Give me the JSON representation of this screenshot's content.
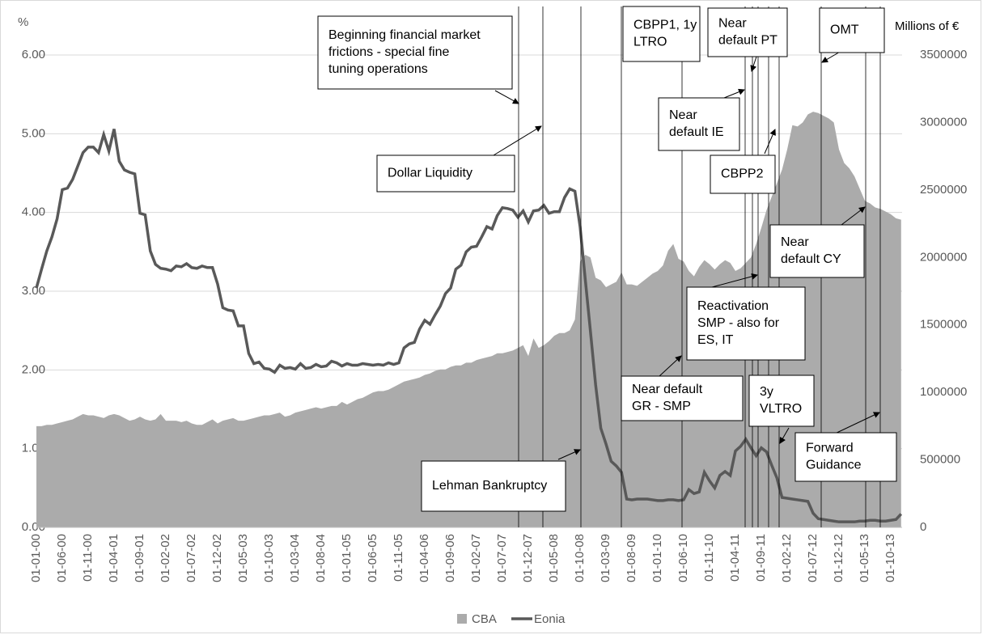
{
  "chart_data": {
    "type": "area-line",
    "y_label": "%",
    "y2_label": "Millions of €",
    "categories": [
      "01-01-00",
      null,
      null,
      null,
      null,
      "01-06-00",
      null,
      null,
      null,
      null,
      "01-11-00",
      null,
      null,
      null,
      null,
      "01-04-01",
      null,
      null,
      null,
      null,
      "01-09-01",
      null,
      null,
      null,
      null,
      "01-02-02",
      null,
      null,
      null,
      null,
      "01-07-02",
      null,
      null,
      null,
      null,
      "01-12-02",
      null,
      null,
      null,
      null,
      "01-05-03",
      null,
      null,
      null,
      null,
      "01-10-03",
      null,
      null,
      null,
      null,
      "01-03-04",
      null,
      null,
      null,
      null,
      "01-08-04",
      null,
      null,
      null,
      null,
      "01-01-05",
      null,
      null,
      null,
      null,
      "01-06-05",
      null,
      null,
      null,
      null,
      "01-11-05",
      null,
      null,
      null,
      null,
      "01-04-06",
      null,
      null,
      null,
      null,
      "01-09-06",
      null,
      null,
      null,
      null,
      "01-02-07",
      null,
      null,
      null,
      null,
      "01-07-07",
      null,
      null,
      null,
      null,
      "01-12-07",
      null,
      null,
      null,
      null,
      "01-05-08",
      null,
      null,
      null,
      null,
      "01-10-08",
      null,
      null,
      null,
      null,
      "01-03-09",
      null,
      null,
      null,
      null,
      "01-08-09",
      null,
      null,
      null,
      null,
      "01-01-10",
      null,
      null,
      null,
      null,
      "01-06-10",
      null,
      null,
      null,
      null,
      "01-11-10",
      null,
      null,
      null,
      null,
      "01-04-11",
      null,
      null,
      null,
      null,
      "01-09-11",
      null,
      null,
      null,
      null,
      "01-02-12",
      null,
      null,
      null,
      null,
      "01-07-12",
      null,
      null,
      null,
      null,
      "01-12-12",
      null,
      null,
      null,
      null,
      "01-05-13",
      null,
      null,
      null,
      null,
      "01-10-13",
      null,
      null
    ],
    "series": [
      {
        "name": "CBA",
        "color": "#ababab",
        "axis": "y2",
        "kind": "area",
        "values": [
          750000,
          750000,
          760000,
          760000,
          770000,
          780000,
          790000,
          800000,
          820000,
          840000,
          830000,
          830000,
          820000,
          810000,
          830000,
          840000,
          830000,
          810000,
          790000,
          800000,
          820000,
          800000,
          790000,
          800000,
          840000,
          790000,
          790000,
          790000,
          780000,
          790000,
          770000,
          760000,
          760000,
          780000,
          800000,
          770000,
          790000,
          800000,
          810000,
          790000,
          790000,
          800000,
          810000,
          820000,
          830000,
          830000,
          840000,
          850000,
          820000,
          830000,
          850000,
          860000,
          870000,
          880000,
          890000,
          880000,
          890000,
          900000,
          900000,
          930000,
          910000,
          930000,
          950000,
          960000,
          980000,
          1000000,
          1010000,
          1010000,
          1020000,
          1040000,
          1060000,
          1080000,
          1090000,
          1100000,
          1110000,
          1130000,
          1140000,
          1160000,
          1170000,
          1170000,
          1190000,
          1200000,
          1200000,
          1220000,
          1220000,
          1240000,
          1250000,
          1260000,
          1270000,
          1290000,
          1290000,
          1300000,
          1310000,
          1330000,
          1350000,
          1270000,
          1400000,
          1330000,
          1350000,
          1380000,
          1420000,
          1440000,
          1440000,
          1460000,
          1540000,
          1970000,
          2020000,
          2000000,
          1850000,
          1830000,
          1780000,
          1800000,
          1820000,
          1890000,
          1800000,
          1800000,
          1790000,
          1820000,
          1850000,
          1880000,
          1900000,
          1940000,
          2050000,
          2100000,
          1990000,
          1970000,
          1900000,
          1860000,
          1930000,
          1980000,
          1950000,
          1910000,
          1950000,
          1980000,
          1960000,
          1900000,
          1920000,
          1960000,
          2000000,
          2100000,
          2220000,
          2350000,
          2450000,
          2550000,
          2650000,
          2800000,
          2980000,
          2970000,
          3000000,
          3060000,
          3080000,
          3070000,
          3050000,
          3030000,
          3000000,
          2800000,
          2700000,
          2660000,
          2600000,
          2510000,
          2420000,
          2400000,
          2370000,
          2360000,
          2340000,
          2320000,
          2290000,
          2280000
        ]
      },
      {
        "name": "Eonia",
        "color": "#595959",
        "axis": "y",
        "kind": "line",
        "values": [
          3.04,
          3.28,
          3.51,
          3.69,
          3.92,
          4.29,
          4.31,
          4.42,
          4.59,
          4.76,
          4.83,
          4.83,
          4.76,
          4.99,
          4.78,
          5.06,
          4.65,
          4.54,
          4.51,
          4.49,
          3.99,
          3.97,
          3.51,
          3.34,
          3.29,
          3.28,
          3.26,
          3.32,
          3.31,
          3.35,
          3.3,
          3.29,
          3.32,
          3.3,
          3.3,
          3.09,
          2.79,
          2.76,
          2.75,
          2.56,
          2.56,
          2.21,
          2.08,
          2.1,
          2.02,
          2.01,
          1.97,
          2.06,
          2.02,
          2.03,
          2.01,
          2.08,
          2.02,
          2.03,
          2.07,
          2.04,
          2.05,
          2.11,
          2.09,
          2.05,
          2.08,
          2.06,
          2.06,
          2.08,
          2.07,
          2.06,
          2.07,
          2.06,
          2.09,
          2.07,
          2.09,
          2.28,
          2.33,
          2.35,
          2.52,
          2.63,
          2.58,
          2.7,
          2.81,
          2.97,
          3.04,
          3.28,
          3.33,
          3.5,
          3.56,
          3.57,
          3.69,
          3.82,
          3.79,
          3.96,
          4.06,
          4.05,
          4.03,
          3.94,
          4.02,
          3.88,
          4.02,
          4.03,
          4.09,
          3.99,
          4.01,
          4.01,
          4.19,
          4.3,
          4.27,
          3.82,
          3.15,
          2.49,
          1.81,
          1.26,
          1.06,
          0.84,
          0.78,
          0.7,
          0.36,
          0.35,
          0.36,
          0.36,
          0.36,
          0.35,
          0.34,
          0.34,
          0.35,
          0.35,
          0.34,
          0.35,
          0.48,
          0.43,
          0.45,
          0.7,
          0.59,
          0.5,
          0.66,
          0.71,
          0.66,
          0.97,
          1.03,
          1.12,
          1.01,
          0.91,
          1.01,
          0.96,
          0.79,
          0.63,
          0.38,
          0.37,
          0.36,
          0.35,
          0.34,
          0.33,
          0.18,
          0.11,
          0.1,
          0.09,
          0.08,
          0.07,
          0.07,
          0.07,
          0.07,
          0.08,
          0.08,
          0.09,
          0.09,
          0.08,
          0.08,
          0.09,
          0.1,
          0.17
        ]
      }
    ],
    "ylim": [
      0,
      6
    ],
    "yticks": [
      {
        "value": 0,
        "label": "0.00"
      },
      {
        "value": 1,
        "label": "1.00"
      },
      {
        "value": 2,
        "label": "2.00"
      },
      {
        "value": 3,
        "label": "3.00"
      },
      {
        "value": 4,
        "label": "4.00"
      },
      {
        "value": 5,
        "label": "5.00"
      },
      {
        "value": 6,
        "label": "6.00"
      }
    ],
    "y2lim": [
      0,
      3500000
    ],
    "y2ticks": [
      0,
      500000,
      1000000,
      1500000,
      2000000,
      2500000,
      3000000,
      3500000
    ],
    "grid": true,
    "legend": "bottom",
    "annotations": [
      {
        "text": [
          "Beginning financial market",
          "frictions - special fine",
          "tuning operations"
        ]
      },
      {
        "text": [
          "Dollar Liquidity"
        ]
      },
      {
        "text": [
          "Lehman Bankruptcy"
        ]
      },
      {
        "text": [
          "CBPP1, 1y",
          "LTRO"
        ]
      },
      {
        "text": [
          "Near",
          "default PT"
        ]
      },
      {
        "text": [
          "OMT"
        ]
      },
      {
        "text": [
          "Near",
          "default IE"
        ]
      },
      {
        "text": [
          "CBPP2"
        ]
      },
      {
        "text": [
          "Near",
          "default CY"
        ]
      },
      {
        "text": [
          "Reactivation",
          "SMP - also for",
          "ES, IT"
        ]
      },
      {
        "text": [
          "Near default",
          "GR - SMP"
        ]
      },
      {
        "text": [
          "3y",
          "VLTRO"
        ]
      },
      {
        "text": [
          "Forward",
          "Guidance"
        ]
      }
    ]
  }
}
